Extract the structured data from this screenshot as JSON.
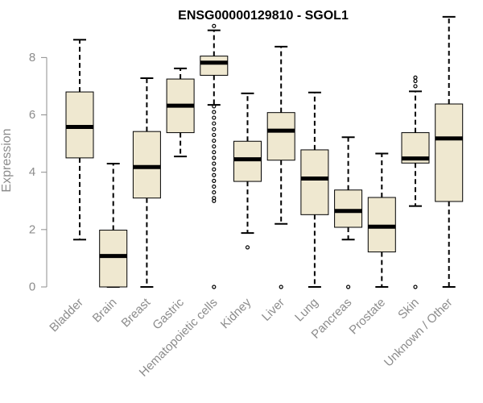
{
  "chart_data": {
    "type": "boxplot",
    "title": "ENSG00000129810 - SGOL1",
    "xlabel": "",
    "ylabel": "Expression",
    "ylim": [
      0,
      9.5
    ],
    "yticks": [
      0,
      2,
      4,
      6,
      8
    ],
    "grid": false,
    "colors": {
      "box_fill": "#efe8d0",
      "box_stroke": "#000000",
      "axis": "#8c8c8c"
    },
    "categories": [
      "Bladder",
      "Brain",
      "Breast",
      "Gastric",
      "Hematopoietic cells",
      "Kidney",
      "Liver",
      "Lung",
      "Pancreas",
      "Prostate",
      "Skin",
      "Unknown / Other"
    ],
    "boxes": [
      {
        "min": 1.65,
        "q1": 4.5,
        "median": 5.58,
        "q3": 6.8,
        "max": 8.62,
        "outliers": []
      },
      {
        "min": 0.0,
        "q1": 0.0,
        "median": 1.08,
        "q3": 1.98,
        "max": 4.3,
        "outliers": []
      },
      {
        "min": 0.0,
        "q1": 3.1,
        "median": 4.18,
        "q3": 5.42,
        "max": 7.28,
        "outliers": []
      },
      {
        "min": 4.55,
        "q1": 5.38,
        "median": 6.32,
        "q3": 7.25,
        "max": 7.62,
        "outliers": []
      },
      {
        "min": 6.35,
        "q1": 7.38,
        "median": 7.82,
        "q3": 8.05,
        "max": 8.95,
        "outliers": [
          9.1,
          6.3,
          6.1,
          5.9,
          5.7,
          5.5,
          5.3,
          5.1,
          4.9,
          4.7,
          4.5,
          4.3,
          4.1,
          3.9,
          3.7,
          3.5,
          3.3,
          3.1,
          3.0,
          0.0
        ]
      },
      {
        "min": 1.88,
        "q1": 3.68,
        "median": 4.45,
        "q3": 5.08,
        "max": 6.75,
        "outliers": [
          1.38
        ]
      },
      {
        "min": 2.2,
        "q1": 4.42,
        "median": 5.45,
        "q3": 6.08,
        "max": 8.38,
        "outliers": [
          0.0
        ]
      },
      {
        "min": 0.0,
        "q1": 2.52,
        "median": 3.78,
        "q3": 4.78,
        "max": 6.78,
        "outliers": []
      },
      {
        "min": 1.65,
        "q1": 2.08,
        "median": 2.65,
        "q3": 3.38,
        "max": 5.22,
        "outliers": [
          0.0
        ]
      },
      {
        "min": 0.0,
        "q1": 1.22,
        "median": 2.1,
        "q3": 3.12,
        "max": 4.65,
        "outliers": []
      },
      {
        "min": 2.82,
        "q1": 4.32,
        "median": 4.48,
        "q3": 5.38,
        "max": 6.82,
        "outliers": [
          7.0,
          7.18,
          7.3,
          0.0
        ]
      },
      {
        "min": 0.0,
        "q1": 2.98,
        "median": 5.18,
        "q3": 6.38,
        "max": 9.42,
        "outliers": []
      }
    ]
  }
}
